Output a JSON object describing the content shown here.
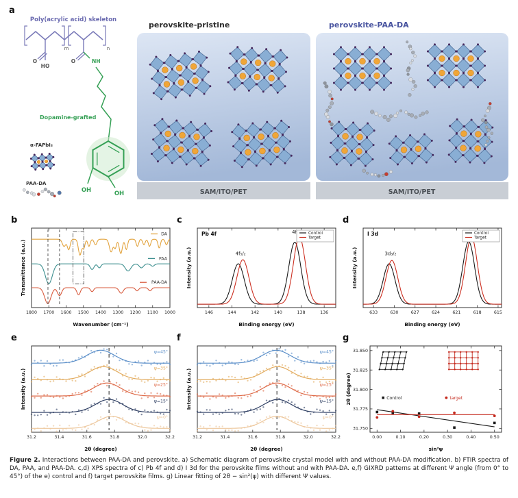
{
  "panel_a": {
    "label": "a",
    "skeleton_label": "Poly(acrylic acid) skeleton",
    "dopamine_label": "Dopamine-grafted",
    "fapbi_label": "α-FAPbI₃",
    "paada_label": "PAA-DA",
    "m_sub": "m",
    "n_sub": "n",
    "o_label": "O",
    "ho_label": "HO",
    "nh_label": "NH",
    "oh_label": "OH",
    "pristine_title": "perovskite-pristine",
    "target_title": "perovskite-PAA-DA",
    "substrate_label": "SAM/ITO/PET",
    "colors": {
      "skeleton_text": "#6b6bb0",
      "dopamine_text": "#35a055",
      "target_title_text": "#4a55a0",
      "backbone": "#7a7ab8",
      "crystal_fill": "#89aed4",
      "crystal_edge": "#50719c",
      "sphere": "#f0a638",
      "sphere_edge": "#c07818",
      "iodide_dot": "#462a5e",
      "panel_top": "#dde6f4",
      "panel_bottom": "#a3b8d8",
      "substrate_bg": "#c9ced5"
    }
  },
  "caption": {
    "bold": "Figure 2.",
    "text": "Interactions between PAA-DA and perovskite. a) Schematic diagram of perovskite crystal model with and without PAA-DA modification. b) FTIR spectra of DA, PAA, and PAA-DA. c,d) XPS spectra of c) Pb 4f and d) I 3d for the perovskite films without and with PAA-DA. e,f) GIXRD patterns at different Ψ angle (from 0° to 45°) of the e) control and f) target perovskite films. g) Linear fitting of 2θ − sin²(ψ) with different Ψ values."
  },
  "chart_data": [
    {
      "id": "b",
      "panel_label": "b",
      "type": "ftir",
      "xlabel": "Wavenumber (cm⁻¹)",
      "ylabel": "Transmittance (a.u.)",
      "x_range": [
        1800,
        1000
      ],
      "x_ticks": [
        [
          1800,
          "1800"
        ],
        [
          1700,
          "1700"
        ],
        [
          1600,
          "1600"
        ],
        [
          1500,
          "1500"
        ],
        [
          1400,
          "1400"
        ],
        [
          1300,
          "1300"
        ],
        [
          1200,
          "1200"
        ],
        [
          1100,
          "1100"
        ],
        [
          1000,
          "1000"
        ]
      ],
      "marker_lines": [
        1705,
        1638
      ],
      "marker_box": [
        1560,
        1498
      ],
      "series": [
        {
          "name": "DA",
          "color": "#e2a33d",
          "baseline": 0.86,
          "peaks": [
            [
              1612,
              10,
              0.09
            ],
            [
              1585,
              8,
              0.13
            ],
            [
              1520,
              9,
              0.2
            ],
            [
              1498,
              7,
              0.11
            ],
            [
              1468,
              7,
              0.09
            ],
            [
              1430,
              8,
              0.07
            ],
            [
              1340,
              10,
              0.16
            ],
            [
              1316,
              7,
              0.11
            ],
            [
              1284,
              9,
              0.18
            ],
            [
              1252,
              7,
              0.13
            ],
            [
              1188,
              7,
              0.09
            ],
            [
              1150,
              7,
              0.07
            ],
            [
              1118,
              7,
              0.09
            ],
            [
              1062,
              7,
              0.11
            ],
            [
              1020,
              7,
              0.07
            ]
          ]
        },
        {
          "name": "PAA",
          "color": "#3d8f8f",
          "baseline": 0.55,
          "peaks": [
            [
              1700,
              20,
              0.25
            ],
            [
              1450,
              11,
              0.07
            ],
            [
              1408,
              9,
              0.05
            ],
            [
              1242,
              16,
              0.09
            ],
            [
              1165,
              12,
              0.05
            ],
            [
              1100,
              10,
              0.03
            ]
          ]
        },
        {
          "name": "PAA-DA",
          "color": "#d85b3e",
          "baseline": 0.25,
          "peaks": [
            [
              1706,
              18,
              0.2
            ],
            [
              1638,
              12,
              0.1
            ],
            [
              1528,
              10,
              0.09
            ],
            [
              1450,
              9,
              0.05
            ],
            [
              1282,
              12,
              0.07
            ],
            [
              1190,
              9,
              0.04
            ],
            [
              1115,
              9,
              0.04
            ]
          ]
        }
      ]
    },
    {
      "id": "c",
      "panel_label": "c",
      "type": "xps",
      "title": "Pb 4f",
      "xlabel": "Binding energy (eV)",
      "ylabel": "Intensity (a.u.)",
      "x_range": [
        147,
        135
      ],
      "x_ticks": [
        [
          146,
          "146"
        ],
        [
          144,
          "144"
        ],
        [
          142,
          "142"
        ],
        [
          140,
          "140"
        ],
        [
          138,
          "138"
        ],
        [
          136,
          "136"
        ]
      ],
      "legend": [
        {
          "label": "Control",
          "color": "#1a1a1a"
        },
        {
          "label": "Target",
          "color": "#cc2f21"
        }
      ],
      "series": [
        {
          "name": "Control",
          "color": "#1a1a1a",
          "peaks": [
            [
              143.45,
              0.52,
              0.6
            ],
            [
              138.55,
              0.52,
              0.92
            ]
          ]
        },
        {
          "name": "Target",
          "color": "#cc2f21",
          "peaks": [
            [
              143.05,
              0.52,
              0.66
            ],
            [
              138.15,
              0.52,
              1.0
            ]
          ]
        }
      ],
      "peak_labels": [
        {
          "text": "4f₅/₂",
          "x": 143.25,
          "y": 0.78
        },
        {
          "text": "4f₇/₂",
          "x": 138.35,
          "y": 1.1
        }
      ]
    },
    {
      "id": "d",
      "panel_label": "d",
      "type": "xps",
      "title": "I 3d",
      "xlabel": "Binding energy (eV)",
      "ylabel": "Intensity (a.u.)",
      "x_range": [
        634.5,
        614.5
      ],
      "x_ticks": [
        [
          633,
          "633"
        ],
        [
          630,
          "630"
        ],
        [
          627,
          "627"
        ],
        [
          624,
          "624"
        ],
        [
          621,
          "621"
        ],
        [
          618,
          "618"
        ],
        [
          615,
          "615"
        ]
      ],
      "legend": [
        {
          "label": "Control",
          "color": "#1a1a1a"
        },
        {
          "label": "Target",
          "color": "#cc2f21"
        }
      ],
      "series": [
        {
          "name": "Control",
          "color": "#1a1a1a",
          "peaks": [
            [
              630.75,
              0.85,
              0.6
            ],
            [
              619.25,
              0.85,
              0.93
            ]
          ]
        },
        {
          "name": "Target",
          "color": "#cc2f21",
          "peaks": [
            [
              630.35,
              0.85,
              0.65
            ],
            [
              618.85,
              0.85,
              1.0
            ]
          ]
        }
      ],
      "peak_labels": [
        {
          "text": "3d₃/₂",
          "x": 630.55,
          "y": 0.78
        },
        {
          "text": "3d₅/₂",
          "x": 619.05,
          "y": 1.1
        }
      ]
    },
    {
      "id": "e",
      "panel_label": "e",
      "type": "gixrd",
      "xlabel": "2θ (degree)",
      "ylabel": "Intensity (a.u.)",
      "x_range": [
        31.2,
        32.2
      ],
      "x_ticks": [
        [
          31.2,
          "31.2"
        ],
        [
          31.4,
          "31.4"
        ],
        [
          31.6,
          "31.6"
        ],
        [
          31.8,
          "31.8"
        ],
        [
          32,
          "32.0"
        ],
        [
          32.2,
          "32.2"
        ]
      ],
      "dash_x": 31.76,
      "series": [
        {
          "name": "ψ=45°",
          "color": "#5b8fc9",
          "base": 0.8,
          "center": 31.7,
          "sigma": 0.1,
          "height": 0.15
        },
        {
          "name": "ψ=35°",
          "color": "#e2ab5e",
          "base": 0.61,
          "center": 31.72,
          "sigma": 0.1,
          "height": 0.15
        },
        {
          "name": "ψ=25°",
          "color": "#de6a48",
          "base": 0.42,
          "center": 31.745,
          "sigma": 0.1,
          "height": 0.15
        },
        {
          "name": "ψ=15°",
          "color": "#2f3f63",
          "base": 0.23,
          "center": 31.76,
          "sigma": 0.1,
          "height": 0.15
        },
        {
          "name": "ψ=0°",
          "color": "#edc79c",
          "base": 0.045,
          "center": 31.78,
          "sigma": 0.1,
          "height": 0.14
        }
      ]
    },
    {
      "id": "f",
      "panel_label": "f",
      "type": "gixrd",
      "xlabel": "2θ (degree)",
      "ylabel": "Intensity (a.u.)",
      "x_range": [
        31.2,
        32.2
      ],
      "x_ticks": [
        [
          31.2,
          "31.2"
        ],
        [
          31.4,
          "31.4"
        ],
        [
          31.6,
          "31.6"
        ],
        [
          31.8,
          "31.8"
        ],
        [
          32,
          "32.0"
        ],
        [
          32.2,
          "32.2"
        ]
      ],
      "dash_x": 31.775,
      "series": [
        {
          "name": "ψ=45°",
          "color": "#5b8fc9",
          "base": 0.8,
          "center": 31.77,
          "sigma": 0.1,
          "height": 0.15
        },
        {
          "name": "ψ=35°",
          "color": "#e2ab5e",
          "base": 0.61,
          "center": 31.78,
          "sigma": 0.1,
          "height": 0.15
        },
        {
          "name": "ψ=25°",
          "color": "#de6a48",
          "base": 0.42,
          "center": 31.775,
          "sigma": 0.1,
          "height": 0.15
        },
        {
          "name": "ψ=15°",
          "color": "#2f3f63",
          "base": 0.23,
          "center": 31.78,
          "sigma": 0.1,
          "height": 0.15
        },
        {
          "name": "ψ=0°",
          "color": "#edc79c",
          "base": 0.045,
          "center": 31.775,
          "sigma": 0.1,
          "height": 0.14
        }
      ]
    },
    {
      "id": "g",
      "panel_label": "g",
      "type": "scatter",
      "xlabel": "sin²ψ",
      "ylabel": "2θ (degree)",
      "margin_left": 40,
      "ylabel_dx": 29,
      "x_range": [
        -0.03,
        0.53
      ],
      "x_ticks": [
        [
          0,
          "0.00"
        ],
        [
          0.1,
          "0.10"
        ],
        [
          0.2,
          "0.20"
        ],
        [
          0.3,
          "0.30"
        ],
        [
          0.4,
          "0.40"
        ],
        [
          0.5,
          "0.50"
        ]
      ],
      "y_range": [
        31.745,
        31.856
      ],
      "y_ticks": [
        [
          31.75,
          "31.750"
        ],
        [
          31.775,
          "31.775"
        ],
        [
          31.8,
          "31.800"
        ],
        [
          31.825,
          "31.825"
        ],
        [
          31.85,
          "31.850"
        ]
      ],
      "series": [
        {
          "name": "Control",
          "color": "#1a1a1a",
          "marker": "square",
          "points": [
            [
              0.0,
              31.771
            ],
            [
              0.067,
              31.77
            ],
            [
              0.179,
              31.769
            ],
            [
              0.329,
              31.751
            ],
            [
              0.5,
              31.757
            ]
          ],
          "fit": [
            [
              0.0,
              31.774
            ],
            [
              0.5,
              31.752
            ]
          ]
        },
        {
          "name": "target",
          "color": "#c4281c",
          "marker": "circle",
          "points": [
            [
              0.0,
              31.764
            ],
            [
              0.067,
              31.772
            ],
            [
              0.179,
              31.765
            ],
            [
              0.329,
              31.77
            ],
            [
              0.5,
              31.766
            ]
          ],
          "fit": [
            [
              0.0,
              31.7676
            ],
            [
              0.5,
              31.7676
            ]
          ]
        }
      ],
      "legend": [
        {
          "label": "Control",
          "color": "#1a1a1a",
          "marker": "square",
          "fx": 0.1,
          "fy": 0.6
        },
        {
          "label": "target",
          "color": "#c4281c",
          "marker": "circle",
          "fx": 0.58,
          "fy": 0.6
        }
      ],
      "insets": [
        {
          "color": "#1a1a1a",
          "skew": -12,
          "fx": 0.1,
          "fy": 0.07,
          "cols": 5,
          "rows": 4,
          "cell": 8.5
        },
        {
          "color": "#c4281c",
          "skew": 0,
          "fx": 0.6,
          "fy": 0.07,
          "cols": 6,
          "rows": 4,
          "cell": 8.5
        }
      ]
    }
  ]
}
